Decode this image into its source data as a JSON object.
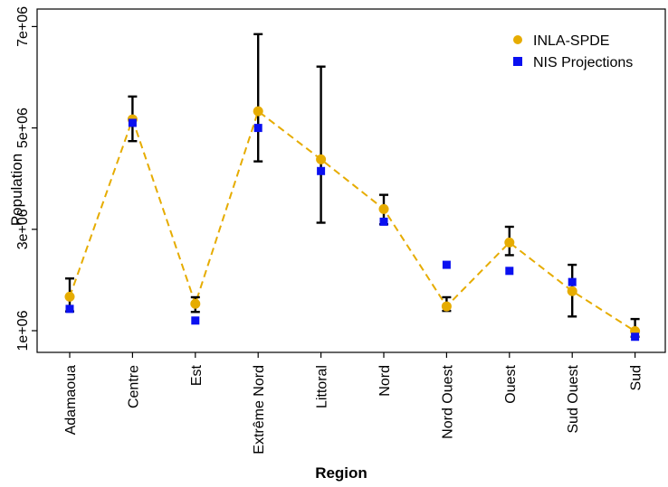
{
  "chart_data": {
    "type": "scatter",
    "title": "",
    "xlabel": "Region",
    "ylabel": "Population",
    "categories": [
      "Adamaoua",
      "Centre",
      "Est",
      "Extrême Nord",
      "Littoral",
      "Nord",
      "Nord Ouest",
      "Ouest",
      "Sud Ouest",
      "Sud"
    ],
    "ylim": [
      600000,
      7200000
    ],
    "yticks": [
      1000000,
      3000000,
      5000000,
      7000000
    ],
    "ytick_labels": [
      "1e+06",
      "3e+06",
      "5e+06",
      "7e+06"
    ],
    "grid": false,
    "legend_position": "top-right",
    "series": [
      {
        "name": "INLA-SPDE",
        "marker": "circle",
        "color": "#E6AC00",
        "line": "dashed",
        "values": [
          1670000,
          5170000,
          1530000,
          5330000,
          4380000,
          3400000,
          1480000,
          2740000,
          1780000,
          990000
        ],
        "lower": [
          1380000,
          4740000,
          1370000,
          4340000,
          3130000,
          3100000,
          1390000,
          2490000,
          1280000,
          880000
        ],
        "upper": [
          2030000,
          5620000,
          1660000,
          6850000,
          6210000,
          3680000,
          1660000,
          3050000,
          2300000,
          1230000
        ]
      },
      {
        "name": "NIS Projections",
        "marker": "square",
        "color": "#0A10F0",
        "values": [
          1430000,
          5100000,
          1200000,
          5000000,
          4150000,
          3150000,
          2300000,
          2180000,
          1960000,
          880000
        ]
      }
    ]
  }
}
